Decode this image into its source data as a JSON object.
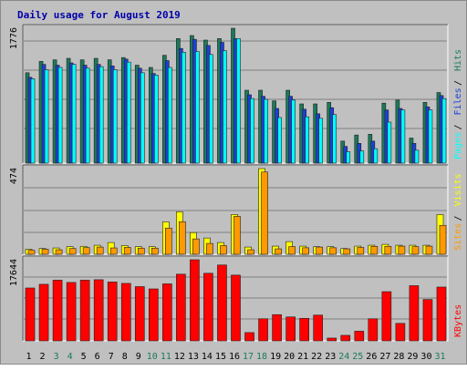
{
  "chart_data": [
    {
      "type": "bar",
      "title": "Daily usage for August 2019",
      "x": [
        "1",
        "2",
        "3",
        "4",
        "5",
        "6",
        "7",
        "8",
        "9",
        "10",
        "11",
        "12",
        "13",
        "14",
        "15",
        "16",
        "17",
        "18",
        "19",
        "20",
        "21",
        "22",
        "23",
        "24",
        "25",
        "26",
        "27",
        "28",
        "29",
        "30",
        "31"
      ],
      "ytick": "1776",
      "ylim": [
        0,
        1776
      ],
      "series": [
        {
          "name": "Hits",
          "color": "#1b7a5a",
          "values": [
            1190,
            1340,
            1360,
            1380,
            1360,
            1380,
            1360,
            1390,
            1290,
            1260,
            1420,
            1640,
            1680,
            1620,
            1640,
            1776,
            960,
            960,
            820,
            960,
            780,
            780,
            800,
            290,
            370,
            380,
            790,
            830,
            330,
            800,
            930
          ]
        },
        {
          "name": "Files",
          "color": "#1c3fd6",
          "values": [
            1130,
            1300,
            1290,
            1320,
            1290,
            1300,
            1280,
            1370,
            1250,
            1180,
            1350,
            1510,
            1630,
            1550,
            1590,
            1640,
            900,
            880,
            720,
            880,
            710,
            650,
            730,
            220,
            260,
            290,
            700,
            720,
            260,
            740,
            890
          ]
        },
        {
          "name": "Pages",
          "color": "#00ffff",
          "values": [
            1110,
            1230,
            1260,
            1300,
            1250,
            1270,
            1230,
            1330,
            1190,
            1160,
            1260,
            1460,
            1470,
            1430,
            1480,
            1640,
            850,
            840,
            600,
            830,
            610,
            590,
            640,
            150,
            160,
            190,
            540,
            700,
            170,
            700,
            850
          ]
        }
      ],
      "legend": [
        "Pages",
        "Files",
        "Hits"
      ]
    },
    {
      "type": "bar",
      "x": [
        "1",
        "2",
        "3",
        "4",
        "5",
        "6",
        "7",
        "8",
        "9",
        "10",
        "11",
        "12",
        "13",
        "14",
        "15",
        "16",
        "17",
        "18",
        "19",
        "20",
        "21",
        "22",
        "23",
        "24",
        "25",
        "26",
        "27",
        "28",
        "29",
        "30",
        "31"
      ],
      "ytick": "474",
      "ylim": [
        0,
        474
      ],
      "series": [
        {
          "name": "Visits",
          "color": "#ffff00",
          "values": [
            28,
            32,
            35,
            42,
            44,
            50,
            65,
            48,
            42,
            42,
            180,
            235,
            120,
            90,
            65,
            220,
            40,
            474,
            45,
            70,
            45,
            42,
            42,
            32,
            45,
            50,
            55,
            50,
            50,
            50,
            220
          ]
        },
        {
          "name": "Sites",
          "color": "#ff9900",
          "values": [
            22,
            28,
            25,
            32,
            37,
            40,
            35,
            38,
            34,
            34,
            145,
            180,
            85,
            60,
            48,
            210,
            25,
            455,
            30,
            42,
            36,
            40,
            36,
            30,
            38,
            44,
            44,
            45,
            42,
            45,
            160
          ]
        }
      ],
      "legend": [
        "Sites",
        "Visits"
      ]
    },
    {
      "type": "bar",
      "x": [
        "1",
        "2",
        "3",
        "4",
        "5",
        "6",
        "7",
        "8",
        "9",
        "10",
        "11",
        "12",
        "13",
        "14",
        "15",
        "16",
        "17",
        "18",
        "19",
        "20",
        "21",
        "22",
        "23",
        "24",
        "25",
        "26",
        "27",
        "28",
        "29",
        "30",
        "31"
      ],
      "ytick": "17644",
      "ylim": [
        0,
        17644
      ],
      "series": [
        {
          "name": "KBytes",
          "color": "#ff0000",
          "values": [
            11500,
            12300,
            13200,
            12700,
            13200,
            13300,
            12800,
            12500,
            11800,
            11300,
            12400,
            14500,
            17644,
            14700,
            16500,
            14300,
            1800,
            4800,
            5700,
            5200,
            4900,
            5600,
            600,
            1200,
            2100,
            4800,
            10700,
            3800,
            12000,
            9000,
            11700
          ]
        }
      ],
      "legend": [
        "KBytes"
      ]
    }
  ],
  "colors": {
    "title": "#0000aa",
    "weekday_label": "#000000",
    "weekend_label": "#1b7a5a",
    "plot_bg": "#c0c0c0",
    "border": "#8a8a8a"
  },
  "weekend_days": [
    "3",
    "4",
    "10",
    "11",
    "17",
    "18",
    "24",
    "25",
    "31"
  ]
}
